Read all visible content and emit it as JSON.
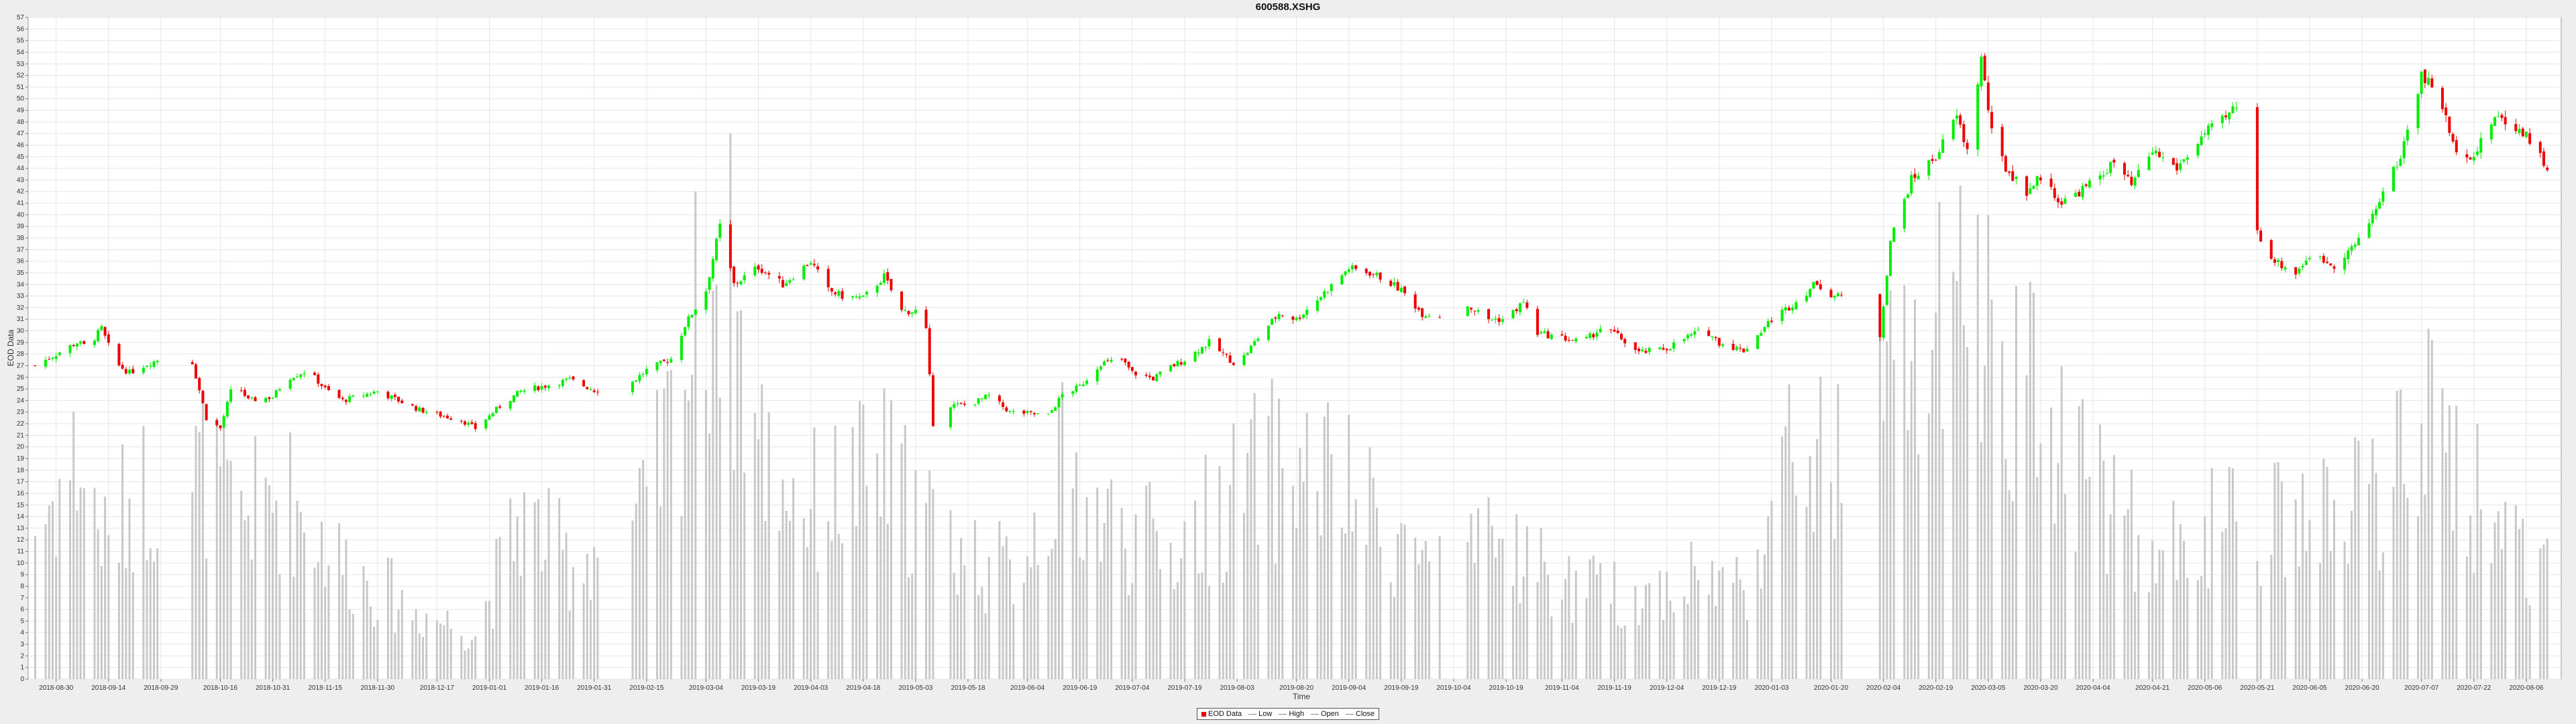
{
  "chart_data": {
    "type": "candlestick",
    "title": "600588.XSHG",
    "xlabel": "Time",
    "ylabel": "EOD Data",
    "ylim": [
      0,
      57
    ],
    "y_ticks": [
      0,
      1,
      2,
      3,
      4,
      5,
      6,
      7,
      8,
      9,
      10,
      11,
      12,
      13,
      14,
      15,
      16,
      17,
      18,
      19,
      20,
      21,
      22,
      23,
      24,
      25,
      26,
      27,
      28,
      29,
      30,
      31,
      32,
      33,
      34,
      35,
      36,
      37,
      38,
      39,
      40,
      41,
      42,
      43,
      44,
      45,
      46,
      47,
      48,
      49,
      50,
      51,
      52,
      53,
      54,
      55,
      56,
      57
    ],
    "x_ticks": [
      "2018-08-30",
      "2018-09-14",
      "2018-09-29",
      "2018-10-16",
      "2018-10-31",
      "2018-11-15",
      "2018-11-30",
      "2018-12-17",
      "2019-01-01",
      "2019-01-16",
      "2019-01-31",
      "2019-02-15",
      "2019-03-04",
      "2019-03-19",
      "2019-04-03",
      "2019-04-18",
      "2019-05-03",
      "2019-05-18",
      "2019-06-04",
      "2019-06-19",
      "2019-07-04",
      "2019-07-19",
      "2019-08-03",
      "2019-08-20",
      "2019-09-04",
      "2019-09-19",
      "2019-10-04",
      "2019-10-19",
      "2019-11-04",
      "2019-11-19",
      "2019-12-04",
      "2019-12-19",
      "2020-01-03",
      "2020-01-20",
      "2020-02-04",
      "2020-02-19",
      "2020-03-05",
      "2020-03-20",
      "2020-04-04",
      "2020-04-21",
      "2020-05-06",
      "2020-05-21",
      "2020-06-05",
      "2020-06-20",
      "2020-07-07",
      "2020-07-22",
      "2020-08-06"
    ],
    "close_path": [
      [
        "2018-08-24",
        27.0
      ],
      [
        "2018-08-30",
        28.0
      ],
      [
        "2018-09-05",
        29.0
      ],
      [
        "2018-09-08",
        28.6
      ],
      [
        "2018-09-12",
        30.2
      ],
      [
        "2018-09-16",
        27.2
      ],
      [
        "2018-09-20",
        26.4
      ],
      [
        "2018-09-24",
        27.0
      ],
      [
        "2018-09-28",
        27.5
      ],
      [
        "2018-10-05",
        27.5
      ],
      [
        "2018-10-08",
        27.3
      ],
      [
        "2018-10-12",
        22.5
      ],
      [
        "2018-10-16",
        21.6
      ],
      [
        "2018-10-20",
        25.8
      ],
      [
        "2018-10-24",
        24.0
      ],
      [
        "2018-10-31",
        24.3
      ],
      [
        "2018-11-04",
        25.9
      ],
      [
        "2018-11-10",
        26.6
      ],
      [
        "2018-11-15",
        25.0
      ],
      [
        "2018-11-20",
        24.0
      ],
      [
        "2018-11-30",
        24.8
      ],
      [
        "2018-12-06",
        24.0
      ],
      [
        "2018-12-12",
        23.2
      ],
      [
        "2018-12-17",
        22.8
      ],
      [
        "2018-12-24",
        22.3
      ],
      [
        "2018-12-28",
        21.6
      ],
      [
        "2019-01-04",
        23.5
      ],
      [
        "2019-01-10",
        24.8
      ],
      [
        "2019-01-16",
        25.2
      ],
      [
        "2019-01-24",
        25.8
      ],
      [
        "2019-01-31",
        24.9
      ],
      [
        "2019-02-08",
        24.9
      ],
      [
        "2019-02-15",
        26.6
      ],
      [
        "2019-02-22",
        27.6
      ],
      [
        "2019-02-26",
        30.5
      ],
      [
        "2019-03-01",
        32.0
      ],
      [
        "2019-03-04",
        33.5
      ],
      [
        "2019-03-08",
        39.0
      ],
      [
        "2019-03-12",
        34.0
      ],
      [
        "2019-03-19",
        35.5
      ],
      [
        "2019-03-26",
        34.0
      ],
      [
        "2019-04-03",
        36.0
      ],
      [
        "2019-04-08",
        33.5
      ],
      [
        "2019-04-12",
        33.0
      ],
      [
        "2019-04-18",
        32.8
      ],
      [
        "2019-04-24",
        34.7
      ],
      [
        "2019-04-29",
        31.7
      ],
      [
        "2019-05-03",
        31.7
      ],
      [
        "2019-05-06",
        30.0
      ],
      [
        "2019-05-08",
        22.0
      ],
      [
        "2019-05-12",
        23.6
      ],
      [
        "2019-05-18",
        23.6
      ],
      [
        "2019-05-24",
        24.4
      ],
      [
        "2019-05-30",
        23.0
      ],
      [
        "2019-06-04",
        22.9
      ],
      [
        "2019-06-10",
        22.7
      ],
      [
        "2019-06-14",
        24.5
      ],
      [
        "2019-06-19",
        25.2
      ],
      [
        "2019-06-25",
        27.2
      ],
      [
        "2019-07-01",
        27.5
      ],
      [
        "2019-07-04",
        26.4
      ],
      [
        "2019-07-10",
        25.9
      ],
      [
        "2019-07-15",
        26.9
      ],
      [
        "2019-07-19",
        27.5
      ],
      [
        "2019-07-26",
        29.0
      ],
      [
        "2019-08-03",
        27.0
      ],
      [
        "2019-08-10",
        29.8
      ],
      [
        "2019-08-15",
        31.5
      ],
      [
        "2019-08-20",
        31.0
      ],
      [
        "2019-08-27",
        33.0
      ],
      [
        "2019-09-04",
        35.4
      ],
      [
        "2019-09-10",
        35.0
      ],
      [
        "2019-09-14",
        34.5
      ],
      [
        "2019-09-19",
        33.5
      ],
      [
        "2019-09-25",
        31.5
      ],
      [
        "2019-10-04",
        31.2
      ],
      [
        "2019-10-08",
        32.2
      ],
      [
        "2019-10-14",
        31.0
      ],
      [
        "2019-10-19",
        31.0
      ],
      [
        "2019-10-24",
        32.5
      ],
      [
        "2019-10-28",
        29.8
      ],
      [
        "2019-11-04",
        29.4
      ],
      [
        "2019-11-10",
        29.0
      ],
      [
        "2019-11-15",
        30.2
      ],
      [
        "2019-11-19",
        29.8
      ],
      [
        "2019-11-26",
        28.1
      ],
      [
        "2019-12-04",
        28.5
      ],
      [
        "2019-12-10",
        29.5
      ],
      [
        "2019-12-15",
        30.1
      ],
      [
        "2019-12-19",
        29.0
      ],
      [
        "2019-12-26",
        28.3
      ],
      [
        "2020-01-03",
        31.0
      ],
      [
        "2020-01-10",
        32.5
      ],
      [
        "2020-01-16",
        34.2
      ],
      [
        "2020-01-20",
        33.0
      ],
      [
        "2020-01-31",
        32.8
      ],
      [
        "2020-02-03",
        29.6
      ],
      [
        "2020-02-06",
        37.8
      ],
      [
        "2020-02-12",
        43.0
      ],
      [
        "2020-02-19",
        45.0
      ],
      [
        "2020-02-25",
        48.5
      ],
      [
        "2020-02-28",
        45.5
      ],
      [
        "2020-03-03",
        53.5
      ],
      [
        "2020-03-06",
        47.0
      ],
      [
        "2020-03-10",
        44.0
      ],
      [
        "2020-03-16",
        42.0
      ],
      [
        "2020-03-20",
        43.3
      ],
      [
        "2020-03-26",
        41.0
      ],
      [
        "2020-04-04",
        42.8
      ],
      [
        "2020-04-10",
        44.5
      ],
      [
        "2020-04-15",
        42.5
      ],
      [
        "2020-04-21",
        45.5
      ],
      [
        "2020-04-28",
        44.0
      ],
      [
        "2020-05-06",
        47.0
      ],
      [
        "2020-05-12",
        48.3
      ],
      [
        "2020-05-16",
        49.8
      ],
      [
        "2020-05-21",
        38.5
      ],
      [
        "2020-05-26",
        36.0
      ],
      [
        "2020-06-01",
        35.0
      ],
      [
        "2020-06-05",
        36.5
      ],
      [
        "2020-06-12",
        35.7
      ],
      [
        "2020-06-20",
        38.0
      ],
      [
        "2020-06-26",
        42.0
      ],
      [
        "2020-07-01",
        45.0
      ],
      [
        "2020-07-07",
        52.0
      ],
      [
        "2020-07-12",
        50.5
      ],
      [
        "2020-07-16",
        46.0
      ],
      [
        "2020-07-22",
        45.0
      ],
      [
        "2020-07-28",
        48.5
      ],
      [
        "2020-08-06",
        47.0
      ],
      [
        "2020-08-12",
        44.0
      ]
    ],
    "volume_path": [
      [
        "2018-08-24",
        13
      ],
      [
        "2018-09-05",
        19
      ],
      [
        "2018-09-14",
        11
      ],
      [
        "2018-09-20",
        16
      ],
      [
        "2018-10-12",
        18
      ],
      [
        "2018-10-20",
        14
      ],
      [
        "2018-11-04",
        16
      ],
      [
        "2018-11-20",
        10
      ],
      [
        "2018-12-10",
        6
      ],
      [
        "2018-12-28",
        4
      ],
      [
        "2019-01-10",
        14
      ],
      [
        "2019-01-24",
        10
      ],
      [
        "2019-02-15",
        14
      ],
      [
        "2019-03-01",
        30
      ],
      [
        "2019-03-08",
        38
      ],
      [
        "2019-03-19",
        20
      ],
      [
        "2019-04-03",
        15
      ],
      [
        "2019-04-24",
        18
      ],
      [
        "2019-05-12",
        12
      ],
      [
        "2019-05-30",
        9
      ],
      [
        "2019-06-14",
        18
      ],
      [
        "2019-06-25",
        14
      ],
      [
        "2019-07-15",
        11
      ],
      [
        "2019-08-10",
        18
      ],
      [
        "2019-08-27",
        18
      ],
      [
        "2019-09-14",
        13
      ],
      [
        "2019-10-04",
        9
      ],
      [
        "2019-10-19",
        12
      ],
      [
        "2019-11-04",
        8
      ],
      [
        "2019-11-26",
        7
      ],
      [
        "2019-12-10",
        9
      ],
      [
        "2019-12-26",
        8
      ],
      [
        "2020-01-10",
        20
      ],
      [
        "2020-01-20",
        18
      ],
      [
        "2020-02-06",
        25
      ],
      [
        "2020-02-25",
        30
      ],
      [
        "2020-03-03",
        32
      ],
      [
        "2020-03-16",
        25
      ],
      [
        "2020-04-04",
        18
      ],
      [
        "2020-04-21",
        10
      ],
      [
        "2020-05-06",
        13
      ],
      [
        "2020-05-21",
        13
      ],
      [
        "2020-06-12",
        14
      ],
      [
        "2020-06-26",
        16
      ],
      [
        "2020-07-07",
        22
      ],
      [
        "2020-07-22",
        16
      ],
      [
        "2020-08-12",
        10
      ]
    ],
    "legend": [
      "EOD Data",
      "Low",
      "High",
      "Open",
      "Close"
    ],
    "colors": {
      "up": "#00ee00",
      "down": "#ee0000",
      "volume": "#c8c8c8",
      "gridline": "#e6e6e6",
      "close_line": "#66cc66"
    }
  }
}
